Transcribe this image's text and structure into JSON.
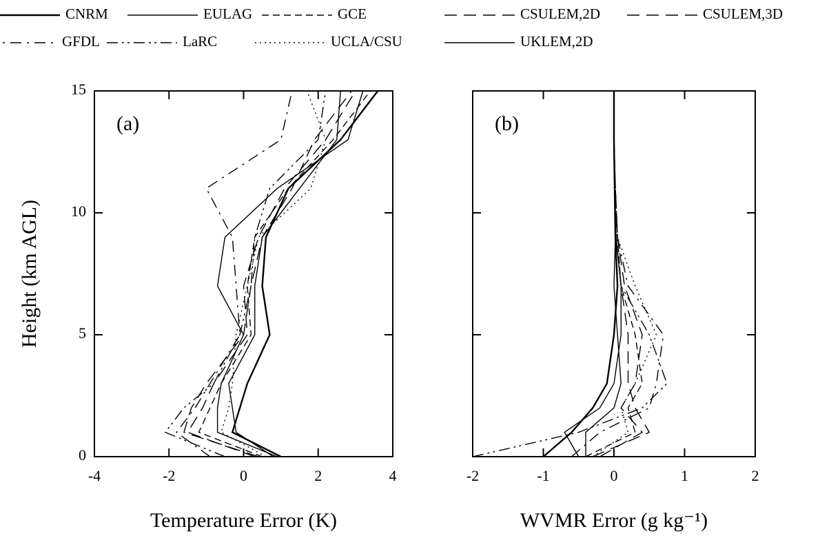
{
  "legend_rows": [
    [
      "CNRM",
      "EULAG",
      "GCE",
      "CSULEM,2D",
      "CSULEM,3D"
    ],
    [
      "GFDL",
      "LaRC",
      "UCLA/CSU",
      "UKLEM,2D"
    ]
  ],
  "chart_data": [
    {
      "type": "line",
      "annotation": "(a)",
      "xlabel": "Temperature Error (K)",
      "ylabel": "Height (km AGL)",
      "xlim": [
        -4,
        4
      ],
      "xticks": [
        -4,
        -2,
        0,
        2,
        4
      ],
      "ylim": [
        0,
        15
      ],
      "yticks": [
        0,
        5,
        10,
        15
      ],
      "y": [
        0,
        1,
        2,
        3,
        5,
        7,
        9,
        11,
        13,
        15
      ],
      "series": [
        {
          "name": "CNRM",
          "color": "#000",
          "style": "solid-thick",
          "values": [
            1.0,
            -0.3,
            -0.1,
            0.1,
            0.7,
            0.5,
            0.6,
            1.2,
            2.6,
            3.6
          ]
        },
        {
          "name": "EULAG",
          "color": "#000",
          "style": "solid",
          "values": [
            0.9,
            -0.7,
            -0.7,
            -0.6,
            0.0,
            -0.7,
            -0.5,
            0.9,
            2.8,
            3.2
          ]
        },
        {
          "name": "GCE",
          "color": "#000",
          "style": "dashed",
          "values": [
            0.5,
            -1.2,
            -0.9,
            -0.6,
            0.2,
            0.1,
            0.3,
            1.2,
            2.4,
            3.4
          ]
        },
        {
          "name": "CSULEM,2D",
          "color": "#000",
          "style": "long-dash",
          "values": [
            0.3,
            -1.5,
            -1.1,
            -0.8,
            0.1,
            0.0,
            0.4,
            1.1,
            2.2,
            3.0
          ]
        },
        {
          "name": "CSULEM,3D",
          "color": "#000",
          "style": "long-dash",
          "values": [
            0.4,
            -1.6,
            -1.4,
            -1.0,
            0.0,
            0.2,
            0.5,
            1.3,
            1.9,
            2.9
          ]
        },
        {
          "name": "GFDL",
          "color": "#000",
          "style": "dash-dot",
          "values": [
            -0.9,
            -1.8,
            -1.3,
            -0.9,
            -0.1,
            -0.2,
            -0.3,
            -1.0,
            1.0,
            1.3
          ]
        },
        {
          "name": "LaRC",
          "color": "#000",
          "style": "dash-dot-dot",
          "values": [
            -0.5,
            -2.1,
            -1.6,
            -0.8,
            -0.1,
            0.2,
            0.3,
            0.7,
            2.0,
            2.2
          ]
        },
        {
          "name": "UCLA/CSU",
          "color": "#000",
          "style": "dotted",
          "values": [
            0.6,
            -0.6,
            -0.4,
            -0.3,
            -0.2,
            0.1,
            0.4,
            1.8,
            2.2,
            1.7
          ]
        },
        {
          "name": "UKLEM,2D",
          "color": "#000",
          "style": "solid",
          "values": [
            0.8,
            -0.2,
            -0.3,
            -0.4,
            0.3,
            0.3,
            0.5,
            1.5,
            2.5,
            2.6
          ]
        }
      ]
    },
    {
      "type": "line",
      "annotation": "(b)",
      "xlabel": "WVMR Error (g kg⁻¹)",
      "xlim": [
        -2,
        2
      ],
      "xticks": [
        -2,
        -1,
        0,
        1,
        2
      ],
      "ylim": [
        0,
        15
      ],
      "yticks": [
        0,
        5,
        10,
        15
      ],
      "y": [
        0,
        1,
        2,
        3,
        5,
        7,
        9,
        11,
        13,
        15
      ],
      "series": [
        {
          "color": "#000",
          "style": "solid-thick",
          "values": [
            -1.0,
            -0.6,
            -0.3,
            -0.1,
            0.0,
            0.05,
            0.02,
            0.01,
            0.0,
            0.0
          ]
        },
        {
          "color": "#000",
          "style": "solid",
          "values": [
            -0.5,
            -0.7,
            -0.2,
            0.0,
            0.1,
            0.1,
            0.03,
            0.01,
            0.0,
            0.0
          ]
        },
        {
          "color": "#000",
          "style": "dashed",
          "values": [
            -0.4,
            0.3,
            0.2,
            0.4,
            0.3,
            0.1,
            0.05,
            0.02,
            0.0,
            0.0
          ]
        },
        {
          "color": "#000",
          "style": "long-dash",
          "values": [
            -0.3,
            0.5,
            0.3,
            0.2,
            0.2,
            0.1,
            0.03,
            0.01,
            0.0,
            0.0
          ]
        },
        {
          "color": "#000",
          "style": "long-dash",
          "values": [
            -0.2,
            0.4,
            0.1,
            0.3,
            0.4,
            0.15,
            0.05,
            0.02,
            0.0,
            0.0
          ]
        },
        {
          "color": "#000",
          "style": "dash-dot",
          "values": [
            -0.6,
            -0.2,
            0.5,
            0.6,
            0.7,
            0.2,
            0.05,
            0.02,
            0.0,
            0.0
          ]
        },
        {
          "color": "#000",
          "style": "dash-dot-dot",
          "values": [
            -2.0,
            -0.5,
            0.4,
            0.75,
            0.5,
            0.1,
            0.03,
            0.01,
            0.0,
            0.0
          ]
        },
        {
          "color": "#000",
          "style": "dotted",
          "values": [
            -0.3,
            0.2,
            0.1,
            0.3,
            0.6,
            0.3,
            0.05,
            0.02,
            0.0,
            0.0
          ]
        },
        {
          "color": "#000",
          "style": "solid",
          "values": [
            -0.4,
            -0.4,
            0.0,
            0.1,
            0.05,
            0.0,
            0.02,
            0.01,
            0.0,
            0.0
          ]
        }
      ]
    }
  ]
}
